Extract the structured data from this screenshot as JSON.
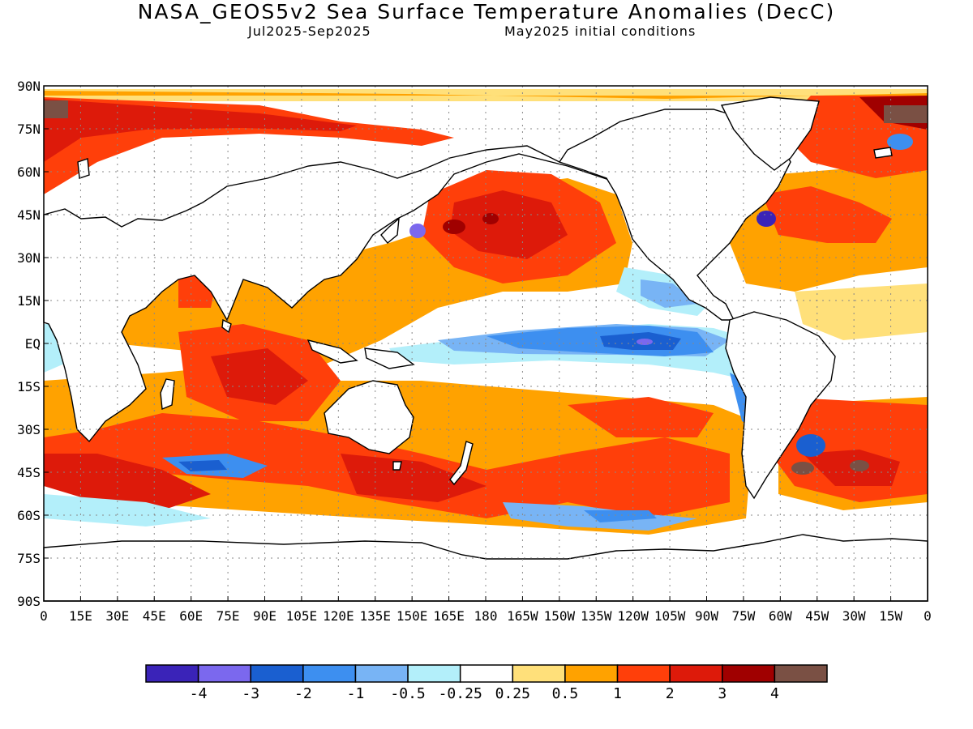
{
  "title": "NASA_GEOS5v2 Sea Surface Temperature Anomalies (DecC)",
  "subtitle_left": "Jul2025-Sep2025",
  "subtitle_right": "May2025 initial conditions",
  "lat_labels": [
    "90N",
    "75N",
    "60N",
    "45N",
    "30N",
    "15N",
    "EQ",
    "15S",
    "30S",
    "45S",
    "60S",
    "75S",
    "90S"
  ],
  "lon_labels": [
    "0",
    "15E",
    "30E",
    "45E",
    "60E",
    "75E",
    "90E",
    "105E",
    "120E",
    "135E",
    "150E",
    "165E",
    "180",
    "165W",
    "150W",
    "135W",
    "120W",
    "105W",
    "90W",
    "75W",
    "60W",
    "45W",
    "30W",
    "15W",
    "0"
  ],
  "legend": {
    "colors": [
      "#3a23b8",
      "#7b68ee",
      "#1a5fd0",
      "#3d8ff0",
      "#78b4f5",
      "#b3effa",
      "#ffffff",
      "#ffe07a",
      "#ffa200",
      "#ff3f0a",
      "#dd1a0a",
      "#a00000",
      "#7a5044"
    ],
    "labels": [
      "-4",
      "-3",
      "-2",
      "-1",
      "-0.5",
      "-0.25",
      "0.25",
      "0.5",
      "1",
      "2",
      "3",
      "4"
    ]
  }
}
